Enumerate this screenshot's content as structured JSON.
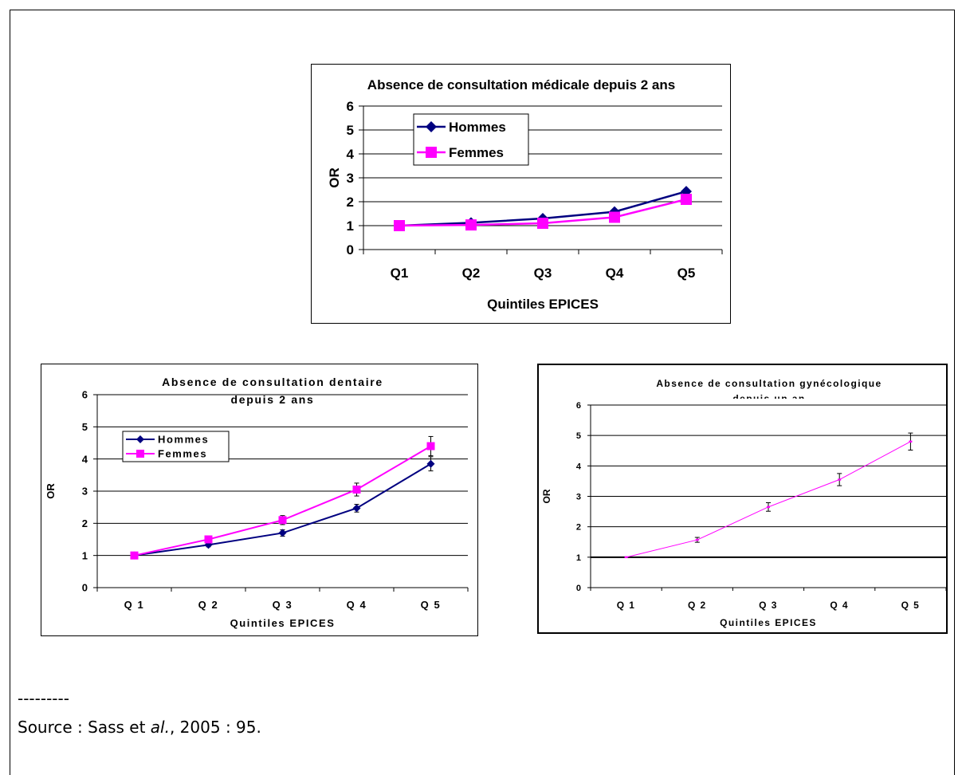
{
  "footnote": {
    "separator": "---------",
    "source_prefix": "Source : Sass et ",
    "source_italic": "al.",
    "source_suffix": ", 2005 : 95."
  },
  "chart_data": [
    {
      "type": "line",
      "title": [
        "Absence de consultation médicale depuis 2 ans"
      ],
      "xlabel": "Quintiles EPICES",
      "ylabel": "OR",
      "categories": [
        "Q1",
        "Q2",
        "Q3",
        "Q4",
        "Q5"
      ],
      "ylim": [
        0,
        6
      ],
      "yticks": [
        "0",
        "1",
        "2",
        "3",
        "4",
        "5",
        "6"
      ],
      "grid": true,
      "legend_position": "top-left",
      "series": [
        {
          "name": "Hommes",
          "values": [
            1.0,
            1.12,
            1.3,
            1.58,
            2.43
          ],
          "color": "#000080",
          "marker": "diamond",
          "errors": [
            0,
            0.06,
            0.07,
            0.08,
            0.12
          ]
        },
        {
          "name": "Femmes",
          "values": [
            1.0,
            1.03,
            1.1,
            1.35,
            2.1
          ],
          "color": "#ff00ff",
          "marker": "square",
          "errors": [
            0,
            0.05,
            0.06,
            0.08,
            0.12
          ]
        }
      ]
    },
    {
      "type": "line",
      "title": [
        "Absence de consultation dentaire",
        "depuis 2 ans"
      ],
      "xlabel": "Quintiles EPICES",
      "ylabel": "OR",
      "categories": [
        "Q 1",
        "Q 2",
        "Q 3",
        "Q 4",
        "Q 5"
      ],
      "ylim": [
        0,
        6
      ],
      "yticks": [
        "0",
        "1",
        "2",
        "3",
        "4",
        "5",
        "6"
      ],
      "grid": true,
      "legend_position": "top-left",
      "series": [
        {
          "name": "Hommes",
          "values": [
            1.0,
            1.33,
            1.7,
            2.47,
            3.85
          ],
          "color": "#000080",
          "marker": "diamond",
          "errors": [
            0,
            0.06,
            0.1,
            0.12,
            0.22
          ]
        },
        {
          "name": "Femmes",
          "values": [
            1.0,
            1.5,
            2.1,
            3.05,
            4.4
          ],
          "color": "#ff00ff",
          "marker": "square",
          "errors": [
            0,
            0.08,
            0.14,
            0.2,
            0.3
          ]
        }
      ]
    },
    {
      "type": "line",
      "title": [
        "Absence de consultation gynécologique",
        "depuis un an"
      ],
      "xlabel": "Quintiles EPICES",
      "ylabel": "OR",
      "categories": [
        "Q 1",
        "Q 2",
        "Q 3",
        "Q 4",
        "Q 5"
      ],
      "ylim": [
        0,
        6
      ],
      "yticks": [
        "0",
        "1",
        "2",
        "3",
        "4",
        "5",
        "6"
      ],
      "grid": true,
      "reference_line": 1,
      "series": [
        {
          "values": [
            1.0,
            1.57,
            2.65,
            3.55,
            4.8
          ],
          "color": "#ff00ff",
          "marker": "small-tick",
          "errors": [
            0,
            0.08,
            0.14,
            0.2,
            0.28
          ]
        }
      ]
    }
  ]
}
